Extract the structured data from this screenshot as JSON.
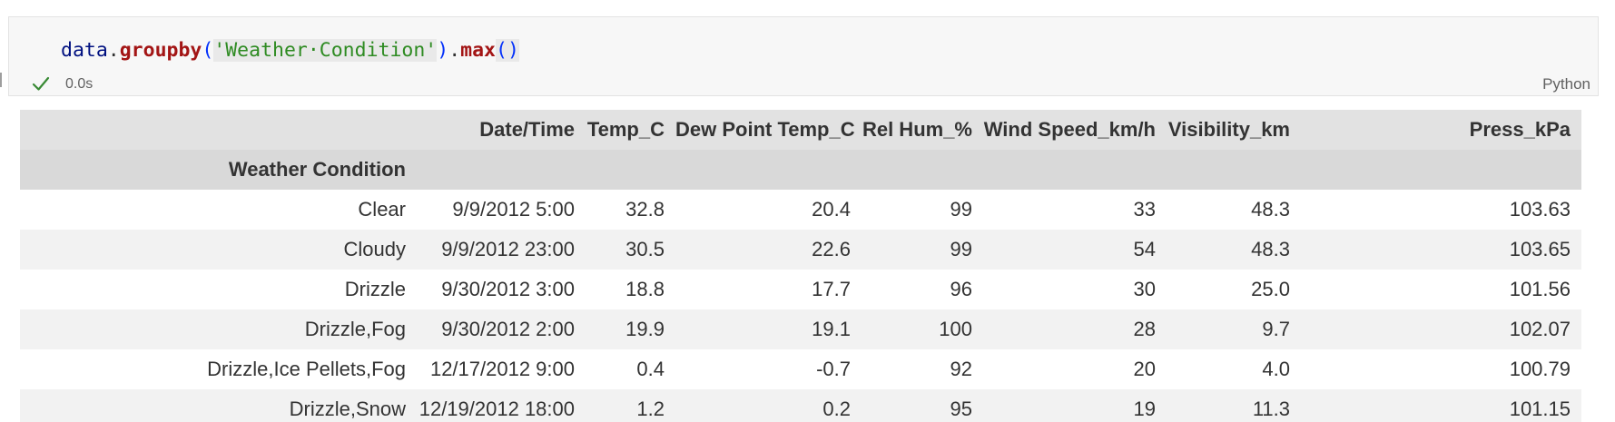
{
  "cell": {
    "code": {
      "var": "data",
      "dot1": ".",
      "fn1": "groupby",
      "open1": "(",
      "str": "'Weather·Condition'",
      "close1": ")",
      "dot2": ".",
      "fn2": "max",
      "parens2": "()"
    },
    "status_icon": "check-icon",
    "exec_time": "0.0s",
    "language": "Python"
  },
  "output": {
    "index_name": "Weather Condition",
    "columns": [
      "Date/Time",
      "Temp_C",
      "Dew Point Temp_C",
      "Rel Hum_%",
      "Wind Speed_km/h",
      "Visibility_km",
      "Press_kPa"
    ],
    "rows": [
      {
        "index": "Clear",
        "values": [
          "9/9/2012 5:00",
          "32.8",
          "20.4",
          "99",
          "33",
          "48.3",
          "103.63"
        ]
      },
      {
        "index": "Cloudy",
        "values": [
          "9/9/2012 23:00",
          "30.5",
          "22.6",
          "99",
          "54",
          "48.3",
          "103.65"
        ]
      },
      {
        "index": "Drizzle",
        "values": [
          "9/30/2012 3:00",
          "18.8",
          "17.7",
          "96",
          "30",
          "25.0",
          "101.56"
        ]
      },
      {
        "index": "Drizzle,Fog",
        "values": [
          "9/30/2012 2:00",
          "19.9",
          "19.1",
          "100",
          "28",
          "9.7",
          "102.07"
        ]
      },
      {
        "index": "Drizzle,Ice Pellets,Fog",
        "values": [
          "12/17/2012 9:00",
          "0.4",
          "-0.7",
          "92",
          "20",
          "4.0",
          "100.79"
        ]
      },
      {
        "index": "Drizzle,Snow",
        "values": [
          "12/19/2012 18:00",
          "1.2",
          "0.2",
          "95",
          "19",
          "11.3",
          "101.15"
        ]
      }
    ]
  },
  "colors": {
    "header_bg": "#e2e2e2",
    "index_header_bg": "#d9d9d9",
    "stripe_bg": "#f2f2f2",
    "check_color": "#388a34"
  }
}
